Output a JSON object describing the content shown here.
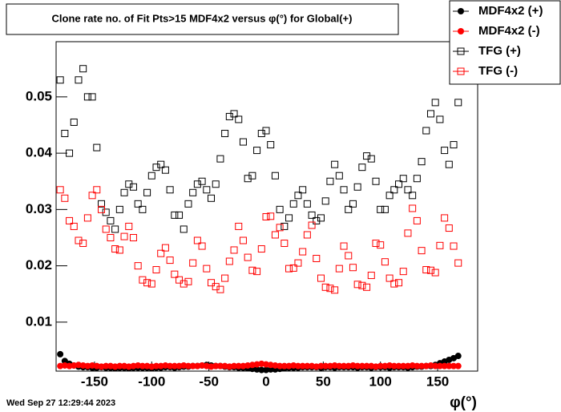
{
  "chart_data": {
    "type": "scatter",
    "title": "Clone rate no. of Fit Pts>15 MDF4x2 versus φ(°) for Global(+)",
    "x_label": "φ(°)",
    "annotation": "Wed Sep 27 12:29:44 2023",
    "xlim": [
      -183.6,
      185
    ],
    "ylim": [
      0.0013,
      0.0598
    ],
    "xticks": [
      -150,
      -100,
      -50,
      0,
      50,
      100,
      150
    ],
    "yticks": [
      0.01,
      0.02,
      0.03,
      0.04,
      0.05
    ],
    "legend": "top-right",
    "x": [
      -180,
      -176,
      -172,
      -168,
      -164,
      -160,
      -156,
      -152,
      -148,
      -144,
      -140,
      -136,
      -132,
      -128,
      -124,
      -120,
      -116,
      -112,
      -108,
      -104,
      -100,
      -96,
      -92,
      -88,
      -84,
      -80,
      -76,
      -72,
      -68,
      -64,
      -60,
      -56,
      -52,
      -48,
      -44,
      -40,
      -36,
      -32,
      -28,
      -24,
      -20,
      -16,
      -12,
      -8,
      -4,
      0,
      4,
      8,
      12,
      16,
      20,
      24,
      28,
      32,
      36,
      40,
      44,
      48,
      52,
      56,
      60,
      64,
      68,
      72,
      76,
      80,
      84,
      88,
      92,
      96,
      100,
      104,
      108,
      112,
      116,
      120,
      124,
      128,
      132,
      136,
      140,
      144,
      148,
      152,
      156,
      160,
      164,
      168
    ],
    "series": [
      {
        "name": "MDF4x2 (+)",
        "color": "#000000",
        "marker": "circle",
        "values": [
          0.0043,
          0.0031,
          0.0026,
          0.0023,
          0.0021,
          0.002,
          0.002,
          0.0019,
          0.0019,
          0.002,
          0.0019,
          0.0019,
          0.0018,
          0.0019,
          0.0019,
          0.0018,
          0.0019,
          0.0019,
          0.0019,
          0.0019,
          0.0018,
          0.0019,
          0.0019,
          0.002,
          0.002,
          0.0019,
          0.002,
          0.0021,
          0.0021,
          0.0022,
          0.0022,
          0.0023,
          0.0024,
          0.0023,
          0.0022,
          0.0022,
          0.0021,
          0.002,
          0.002,
          0.0019,
          0.0019,
          0.0018,
          0.0017,
          0.0016,
          0.0015,
          0.0015,
          0.0016,
          0.0016,
          0.0017,
          0.0018,
          0.0019,
          0.0019,
          0.0019,
          0.002,
          0.002,
          0.002,
          0.002,
          0.0019,
          0.002,
          0.002,
          0.0019,
          0.002,
          0.002,
          0.002,
          0.002,
          0.0019,
          0.002,
          0.002,
          0.0019,
          0.002,
          0.002,
          0.002,
          0.0019,
          0.002,
          0.002,
          0.002,
          0.0019,
          0.002,
          0.0021,
          0.0021,
          0.0022,
          0.0022,
          0.0024,
          0.0027,
          0.003,
          0.0033,
          0.0036,
          0.004
        ]
      },
      {
        "name": "MDF4x2 (-)",
        "color": "#ff0000",
        "marker": "circle",
        "values": [
          0.0022,
          0.0023,
          0.0022,
          0.0023,
          0.0024,
          0.0023,
          0.0022,
          0.0023,
          0.0022,
          0.0021,
          0.0022,
          0.0022,
          0.0021,
          0.0022,
          0.0022,
          0.0021,
          0.0022,
          0.0023,
          0.0022,
          0.0022,
          0.0021,
          0.0022,
          0.0022,
          0.0023,
          0.0022,
          0.0022,
          0.0022,
          0.0023,
          0.0022,
          0.0022,
          0.0022,
          0.0023,
          0.0022,
          0.0021,
          0.0022,
          0.0022,
          0.0022,
          0.0021,
          0.0022,
          0.0022,
          0.0022,
          0.0023,
          0.0024,
          0.0025,
          0.0026,
          0.0025,
          0.0024,
          0.0023,
          0.0022,
          0.0022,
          0.0022,
          0.0023,
          0.0022,
          0.0022,
          0.0022,
          0.0022,
          0.0021,
          0.0022,
          0.0022,
          0.0022,
          0.0023,
          0.0022,
          0.0022,
          0.0022,
          0.0023,
          0.0022,
          0.0022,
          0.0022,
          0.0022,
          0.0021,
          0.0022,
          0.0022,
          0.0023,
          0.0022,
          0.0022,
          0.0022,
          0.0022,
          0.0023,
          0.0022,
          0.0022,
          0.0022,
          0.0023,
          0.0022,
          0.0022,
          0.0022,
          0.0022,
          0.0022,
          0.0022
        ]
      },
      {
        "name": "TFG (+)",
        "color": "#000000",
        "marker": "square-open",
        "values": [
          0.053,
          0.0435,
          0.04,
          0.0455,
          0.053,
          0.055,
          0.05,
          0.05,
          0.041,
          0.031,
          0.0295,
          0.028,
          0.0265,
          0.03,
          0.033,
          0.0345,
          0.034,
          0.031,
          0.03,
          0.033,
          0.036,
          0.0375,
          0.038,
          0.037,
          0.0335,
          0.029,
          0.029,
          0.0265,
          0.031,
          0.033,
          0.0345,
          0.035,
          0.0335,
          0.032,
          0.0345,
          0.039,
          0.0435,
          0.0465,
          0.047,
          0.046,
          0.042,
          0.0355,
          0.036,
          0.0405,
          0.0435,
          0.044,
          0.0415,
          0.036,
          0.03,
          0.027,
          0.0285,
          0.031,
          0.0325,
          0.0335,
          0.031,
          0.029,
          0.028,
          0.0285,
          0.0315,
          0.035,
          0.038,
          0.036,
          0.0335,
          0.03,
          0.031,
          0.034,
          0.0375,
          0.0395,
          0.039,
          0.035,
          0.03,
          0.03,
          0.0325,
          0.0335,
          0.0345,
          0.0355,
          0.0335,
          0.0325,
          0.0355,
          0.0385,
          0.044,
          0.047,
          0.049,
          0.046,
          0.0405,
          0.038,
          0.0415,
          0.049
        ]
      },
      {
        "name": "TFG (-)",
        "color": "#ff0000",
        "marker": "square-open",
        "values": [
          0.0335,
          0.032,
          0.028,
          0.027,
          0.0245,
          0.024,
          0.0285,
          0.0325,
          0.0335,
          0.03,
          0.0265,
          0.025,
          0.023,
          0.0228,
          0.0252,
          0.027,
          0.025,
          0.02,
          0.0175,
          0.017,
          0.0168,
          0.0193,
          0.0222,
          0.0232,
          0.021,
          0.0185,
          0.0175,
          0.0168,
          0.0172,
          0.0205,
          0.0245,
          0.0235,
          0.0195,
          0.017,
          0.0163,
          0.0158,
          0.0178,
          0.0208,
          0.0228,
          0.027,
          0.0245,
          0.0215,
          0.0192,
          0.019,
          0.023,
          0.0287,
          0.0288,
          0.0255,
          0.0268,
          0.024,
          0.0195,
          0.0196,
          0.0205,
          0.0225,
          0.0255,
          0.0272,
          0.0213,
          0.0178,
          0.0162,
          0.016,
          0.0157,
          0.0195,
          0.0235,
          0.0218,
          0.0197,
          0.0167,
          0.0165,
          0.0162,
          0.0183,
          0.024,
          0.0237,
          0.0207,
          0.0178,
          0.0168,
          0.017,
          0.019,
          0.0258,
          0.0302,
          0.028,
          0.0227,
          0.0193,
          0.0192,
          0.0188,
          0.0236,
          0.0285,
          0.0267,
          0.0235,
          0.0205
        ]
      }
    ]
  }
}
